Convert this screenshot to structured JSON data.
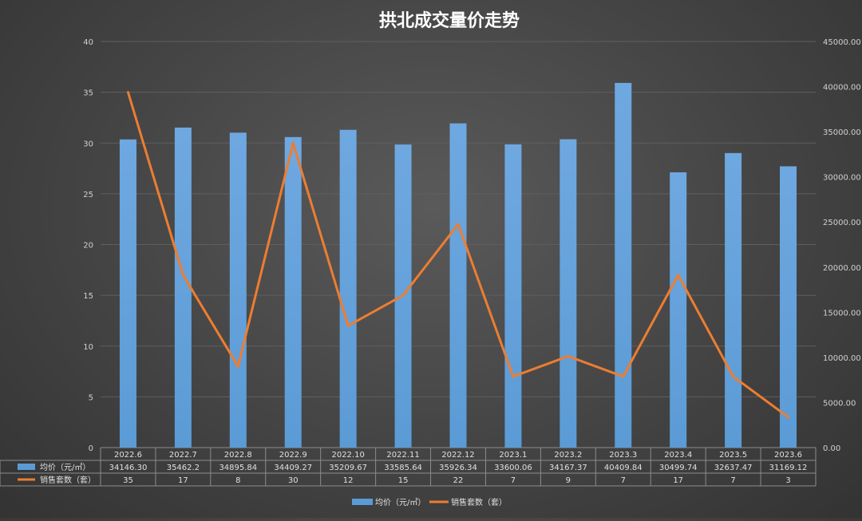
{
  "chart_data": {
    "type": "bar+line",
    "title": "拱北成交量价走势",
    "categories": [
      "2022.6",
      "2022.7",
      "2022.8",
      "2022.9",
      "2022.10",
      "2022.11",
      "2022.12",
      "2023.1",
      "2023.2",
      "2023.3",
      "2023.4",
      "2023.5",
      "2023.6"
    ],
    "series": [
      {
        "name": "均价（元/㎡）",
        "type": "bar",
        "axis": "right",
        "color": "#5b9bd5",
        "values": [
          34146.3,
          35462.2,
          34895.84,
          34409.27,
          35209.67,
          33585.64,
          35926.34,
          33600.06,
          34167.37,
          40409.84,
          30499.74,
          32637.47,
          31169.12
        ],
        "labels": [
          "34146.30",
          "35462.2",
          "34895.84",
          "34409.27",
          "35209.67",
          "33585.64",
          "35926.34",
          "33600.06",
          "34167.37",
          "40409.84",
          "30499.74",
          "32637.47",
          "31169.12"
        ]
      },
      {
        "name": "销售套数（套）",
        "type": "line",
        "axis": "left",
        "color": "#ed7d31",
        "values": [
          35,
          17,
          8,
          30,
          12,
          15,
          22,
          7,
          9,
          7,
          17,
          7,
          3
        ],
        "labels": [
          "35",
          "17",
          "8",
          "30",
          "12",
          "15",
          "22",
          "7",
          "9",
          "7",
          "17",
          "7",
          "3"
        ]
      }
    ],
    "y_left": {
      "min": 0,
      "max": 40,
      "step": 5,
      "ticks": [
        "0",
        "5",
        "10",
        "15",
        "20",
        "25",
        "30",
        "35",
        "40"
      ]
    },
    "y_right": {
      "min": 0,
      "max": 45000,
      "step": 5000,
      "ticks": [
        "0.00",
        "5000.00",
        "10000.00",
        "15000.00",
        "20000.00",
        "25000.00",
        "30000.00",
        "35000.00",
        "40000.00",
        "45000.00"
      ]
    },
    "gridlines": true,
    "data_table": true,
    "legend_position": "bottom"
  }
}
